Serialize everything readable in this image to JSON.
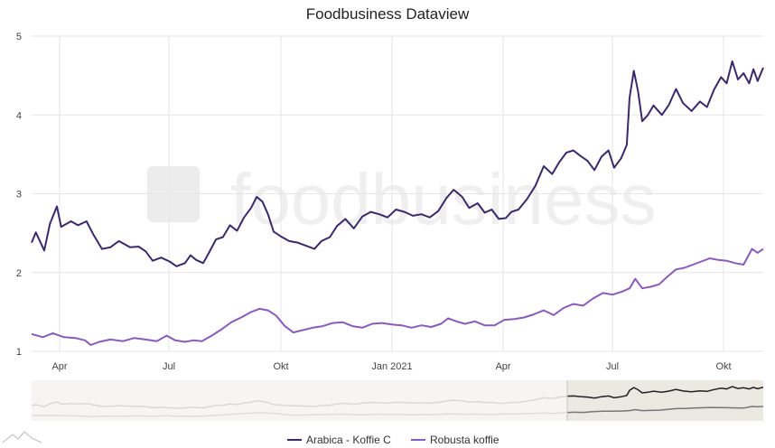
{
  "chart_data": {
    "type": "line",
    "title": "Foodbusiness Dataview",
    "watermark": "foodbusiness",
    "x_tick_labels": [
      "Apr",
      "Jul",
      "Okt",
      "Jan 2021",
      "Apr",
      "Jul",
      "Okt"
    ],
    "y_ticks": [
      1,
      2,
      3,
      4,
      5
    ],
    "ylim": [
      1,
      5
    ],
    "grid": true,
    "legend_position": "bottom",
    "navigator": true,
    "series": [
      {
        "name": "Arabica - Koffie C",
        "color": "#3a2a6a",
        "values": [
          [
            0,
            2.38
          ],
          [
            0.3,
            2.51
          ],
          [
            0.9,
            2.28
          ],
          [
            1.3,
            2.62
          ],
          [
            1.8,
            2.84
          ],
          [
            2.1,
            2.58
          ],
          [
            2.8,
            2.65
          ],
          [
            3.3,
            2.6
          ],
          [
            3.9,
            2.65
          ],
          [
            4.4,
            2.48
          ],
          [
            5.0,
            2.3
          ],
          [
            5.6,
            2.32
          ],
          [
            6.2,
            2.4
          ],
          [
            7.0,
            2.32
          ],
          [
            7.6,
            2.33
          ],
          [
            8.1,
            2.27
          ],
          [
            8.6,
            2.15
          ],
          [
            9.2,
            2.19
          ],
          [
            9.8,
            2.14
          ],
          [
            10.3,
            2.08
          ],
          [
            10.9,
            2.12
          ],
          [
            11.3,
            2.22
          ],
          [
            11.7,
            2.16
          ],
          [
            12.2,
            2.12
          ],
          [
            12.6,
            2.25
          ],
          [
            13.1,
            2.42
          ],
          [
            13.6,
            2.45
          ],
          [
            14.1,
            2.6
          ],
          [
            14.6,
            2.53
          ],
          [
            15.1,
            2.7
          ],
          [
            15.6,
            2.82
          ],
          [
            16.0,
            2.96
          ],
          [
            16.4,
            2.9
          ],
          [
            16.8,
            2.74
          ],
          [
            17.2,
            2.52
          ],
          [
            17.7,
            2.46
          ],
          [
            18.3,
            2.4
          ],
          [
            18.9,
            2.38
          ],
          [
            19.5,
            2.34
          ],
          [
            20.1,
            2.3
          ],
          [
            20.6,
            2.4
          ],
          [
            21.2,
            2.45
          ],
          [
            21.7,
            2.59
          ],
          [
            22.3,
            2.68
          ],
          [
            22.9,
            2.56
          ],
          [
            23.5,
            2.71
          ],
          [
            24.1,
            2.77
          ],
          [
            24.7,
            2.74
          ],
          [
            25.3,
            2.7
          ],
          [
            25.9,
            2.8
          ],
          [
            26.5,
            2.77
          ],
          [
            27.1,
            2.72
          ],
          [
            27.7,
            2.74
          ],
          [
            28.3,
            2.7
          ],
          [
            28.9,
            2.78
          ],
          [
            29.5,
            2.95
          ],
          [
            30.0,
            3.05
          ],
          [
            30.6,
            2.96
          ],
          [
            31.1,
            2.82
          ],
          [
            31.7,
            2.88
          ],
          [
            32.2,
            2.76
          ],
          [
            32.7,
            2.8
          ],
          [
            33.2,
            2.68
          ],
          [
            33.7,
            2.69
          ],
          [
            34.1,
            2.77
          ],
          [
            34.6,
            2.8
          ],
          [
            35.2,
            2.93
          ],
          [
            35.8,
            3.1
          ],
          [
            36.4,
            3.35
          ],
          [
            37.0,
            3.25
          ],
          [
            37.5,
            3.4
          ],
          [
            38.0,
            3.52
          ],
          [
            38.5,
            3.55
          ],
          [
            39.0,
            3.48
          ],
          [
            39.5,
            3.42
          ],
          [
            40.0,
            3.3
          ],
          [
            40.5,
            3.47
          ],
          [
            41.0,
            3.55
          ],
          [
            41.4,
            3.33
          ],
          [
            41.9,
            3.45
          ],
          [
            42.3,
            3.62
          ],
          [
            42.5,
            4.22
          ],
          [
            42.8,
            4.56
          ],
          [
            43.1,
            4.3
          ],
          [
            43.4,
            3.92
          ],
          [
            43.8,
            4.0
          ],
          [
            44.2,
            4.12
          ],
          [
            44.8,
            4.0
          ],
          [
            45.3,
            4.13
          ],
          [
            45.8,
            4.33
          ],
          [
            46.3,
            4.15
          ],
          [
            46.9,
            4.05
          ],
          [
            47.5,
            4.17
          ],
          [
            48.0,
            4.1
          ],
          [
            48.5,
            4.32
          ],
          [
            49.0,
            4.48
          ],
          [
            49.4,
            4.4
          ],
          [
            49.8,
            4.68
          ],
          [
            50.2,
            4.45
          ],
          [
            50.6,
            4.53
          ],
          [
            51.0,
            4.4
          ],
          [
            51.3,
            4.58
          ],
          [
            51.6,
            4.43
          ],
          [
            52.0,
            4.6
          ]
        ]
      },
      {
        "name": "Robusta koffie",
        "color": "#8a5bb8",
        "values": [
          [
            0,
            1.22
          ],
          [
            0.8,
            1.18
          ],
          [
            1.5,
            1.23
          ],
          [
            2.3,
            1.18
          ],
          [
            3.1,
            1.17
          ],
          [
            3.8,
            1.14
          ],
          [
            4.2,
            1.08
          ],
          [
            4.8,
            1.12
          ],
          [
            5.6,
            1.15
          ],
          [
            6.5,
            1.13
          ],
          [
            7.3,
            1.17
          ],
          [
            8.1,
            1.15
          ],
          [
            8.9,
            1.13
          ],
          [
            9.6,
            1.2
          ],
          [
            10.2,
            1.14
          ],
          [
            10.9,
            1.12
          ],
          [
            11.5,
            1.14
          ],
          [
            12.1,
            1.13
          ],
          [
            12.8,
            1.2
          ],
          [
            13.5,
            1.28
          ],
          [
            14.2,
            1.37
          ],
          [
            15.0,
            1.44
          ],
          [
            15.6,
            1.5
          ],
          [
            16.2,
            1.54
          ],
          [
            16.8,
            1.52
          ],
          [
            17.4,
            1.45
          ],
          [
            18.0,
            1.32
          ],
          [
            18.6,
            1.24
          ],
          [
            19.3,
            1.27
          ],
          [
            20.0,
            1.3
          ],
          [
            20.7,
            1.32
          ],
          [
            21.4,
            1.36
          ],
          [
            22.1,
            1.37
          ],
          [
            22.8,
            1.32
          ],
          [
            23.5,
            1.3
          ],
          [
            24.2,
            1.35
          ],
          [
            24.9,
            1.36
          ],
          [
            25.6,
            1.34
          ],
          [
            26.3,
            1.33
          ],
          [
            27.0,
            1.3
          ],
          [
            27.7,
            1.33
          ],
          [
            28.4,
            1.31
          ],
          [
            29.1,
            1.35
          ],
          [
            29.6,
            1.42
          ],
          [
            30.2,
            1.38
          ],
          [
            30.8,
            1.35
          ],
          [
            31.5,
            1.38
          ],
          [
            32.2,
            1.33
          ],
          [
            32.9,
            1.33
          ],
          [
            33.6,
            1.4
          ],
          [
            34.3,
            1.41
          ],
          [
            35.0,
            1.43
          ],
          [
            35.7,
            1.47
          ],
          [
            36.4,
            1.52
          ],
          [
            37.1,
            1.46
          ],
          [
            37.8,
            1.55
          ],
          [
            38.5,
            1.6
          ],
          [
            39.2,
            1.58
          ],
          [
            39.9,
            1.67
          ],
          [
            40.6,
            1.74
          ],
          [
            41.3,
            1.72
          ],
          [
            42.0,
            1.76
          ],
          [
            42.5,
            1.8
          ],
          [
            42.9,
            1.92
          ],
          [
            43.4,
            1.8
          ],
          [
            44.0,
            1.82
          ],
          [
            44.6,
            1.85
          ],
          [
            45.2,
            1.95
          ],
          [
            45.8,
            2.04
          ],
          [
            46.4,
            2.06
          ],
          [
            47.0,
            2.1
          ],
          [
            47.6,
            2.14
          ],
          [
            48.2,
            2.18
          ],
          [
            48.8,
            2.16
          ],
          [
            49.4,
            2.15
          ],
          [
            50.0,
            2.12
          ],
          [
            50.6,
            2.1
          ],
          [
            51.2,
            2.3
          ],
          [
            51.6,
            2.25
          ],
          [
            52.0,
            2.3
          ]
        ]
      }
    ]
  }
}
